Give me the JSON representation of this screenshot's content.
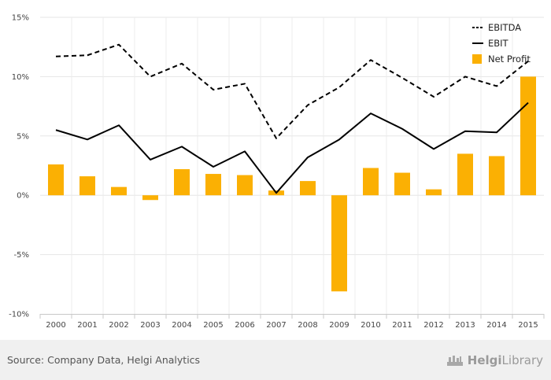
{
  "chart_data": {
    "type": "bar",
    "categories": [
      "2000",
      "2001",
      "2002",
      "2003",
      "2004",
      "2005",
      "2006",
      "2007",
      "2008",
      "2009",
      "2010",
      "2011",
      "2012",
      "2013",
      "2014",
      "2015"
    ],
    "series": [
      {
        "name": "EBITDA",
        "type": "line",
        "style": "dashed",
        "color": "#000000",
        "values": [
          11.7,
          11.8,
          12.7,
          10.0,
          11.1,
          8.9,
          9.4,
          4.8,
          7.6,
          9.1,
          11.4,
          9.9,
          8.3,
          10.0,
          9.2,
          11.3
        ]
      },
      {
        "name": "EBIT",
        "type": "line",
        "style": "solid",
        "color": "#000000",
        "values": [
          5.5,
          4.7,
          5.9,
          3.0,
          4.1,
          2.4,
          3.7,
          0.2,
          3.2,
          4.7,
          6.9,
          5.6,
          3.9,
          5.4,
          5.3,
          7.8
        ]
      },
      {
        "name": "Net Profit",
        "type": "bar",
        "color": "#fbb003",
        "values": [
          2.6,
          1.6,
          0.7,
          -0.4,
          2.2,
          1.8,
          1.7,
          0.4,
          1.2,
          -8.1,
          2.3,
          1.9,
          0.5,
          3.5,
          3.3,
          10.0
        ]
      }
    ],
    "yticks": [
      "15%",
      "10%",
      "5%",
      "0%",
      "-5%",
      "-10%"
    ],
    "ylim": [
      -10,
      15
    ],
    "grid": true,
    "legend": "top-right"
  },
  "footer": {
    "source": "Source: Company Data, Helgi Analytics",
    "brand_part1": "Helgi",
    "brand_part2": "Library"
  }
}
